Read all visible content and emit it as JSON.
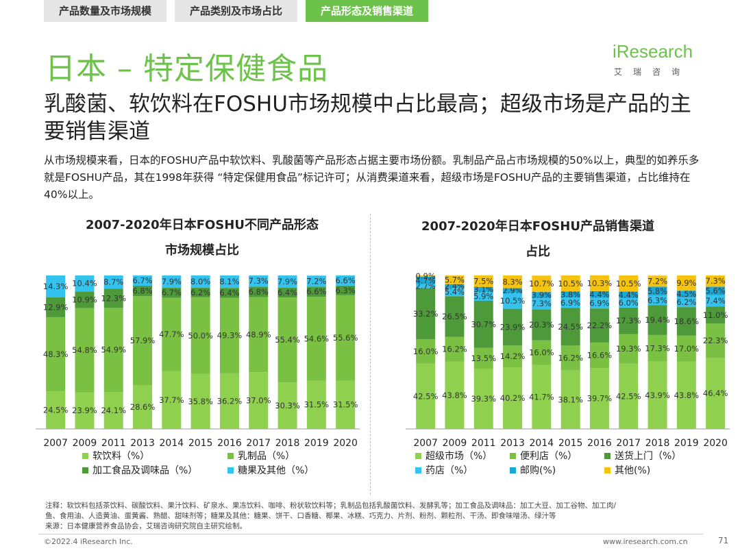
{
  "tabs": [
    {
      "label": "产品数量及市场规模",
      "active": false
    },
    {
      "label": "产品类别及市场占比",
      "active": false
    },
    {
      "label": "产品形态及销售渠道",
      "active": true
    }
  ],
  "page_title": "日本 – 特定保健食品",
  "logo": {
    "text": "iResearch",
    "sub": "艾瑞咨询"
  },
  "headline": "乳酸菌、软饮料在FOSHU市场规模中占比最高；超级市场是产品的主要销售渠道",
  "description": "从市场规模来看，日本的FOSHU产品中软饮料、乳酸菌等产品形态占据主要市场份额。乳制品产品占市场规模的50%以上，典型的如养乐多就是FOSHU产品，其在1998年获得 “特定保健用食品”标记许可；从消费渠道来看，超级市场是FOSHU产品的主要销售渠道，占比维持在40%以上。",
  "colors": {
    "accent": "#6cc24a",
    "light_green": "#8fd14f",
    "mid_green": "#7ac143",
    "dark_green": "#4e9a3a",
    "cyan": "#33c3ee",
    "teal": "#1aa8d6",
    "yellow": "#f6c311"
  },
  "chart_data": [
    {
      "type": "bar",
      "stacked": true,
      "title": "2007-2020年日本FOSHU不同产品形态市场规模占比",
      "title_lines": [
        "2007-2020年日本FOSHU不同产品形态",
        "市场规模占比"
      ],
      "categories": [
        "2007",
        "2009",
        "2011",
        "2013",
        "2014",
        "2015",
        "2016",
        "2017",
        "2018",
        "2019",
        "2020"
      ],
      "ylim": [
        0,
        100
      ],
      "unit": "%",
      "series": [
        {
          "name": "软饮料（%）",
          "color": "#8fd14f",
          "values": [
            24.5,
            23.9,
            24.1,
            28.6,
            37.7,
            35.8,
            36.2,
            37.0,
            30.3,
            31.5,
            31.5
          ]
        },
        {
          "name": "乳制品（%）",
          "color": "#7ac143",
          "values": [
            48.3,
            54.8,
            54.9,
            57.9,
            47.7,
            50.0,
            49.3,
            48.9,
            55.4,
            54.6,
            55.6
          ]
        },
        {
          "name": "加工食品及调味品（%）",
          "color": "#4e9a3a",
          "values": [
            12.9,
            10.9,
            12.3,
            6.8,
            6.7,
            6.2,
            6.4,
            6.8,
            6.4,
            6.6,
            6.3
          ]
        },
        {
          "name": "糖果及其他（%）",
          "color": "#33c3ee",
          "values": [
            14.3,
            10.4,
            8.7,
            6.7,
            7.9,
            8.0,
            8.1,
            7.3,
            7.9,
            7.2,
            6.6
          ]
        }
      ]
    },
    {
      "type": "bar",
      "stacked": true,
      "title": "2007-2020年日本FOSHU产品销售渠道占比",
      "title_lines": [
        "2007-2020年日本FOSHU产品销售渠道",
        "占比"
      ],
      "categories": [
        "2007",
        "2009",
        "2011",
        "2013",
        "2014",
        "2015",
        "2016",
        "2017",
        "2018",
        "2019",
        "2020"
      ],
      "ylim": [
        0,
        100
      ],
      "unit": "%",
      "series": [
        {
          "name": "超级市场（%）",
          "color": "#8fd14f",
          "values": [
            42.5,
            43.8,
            39.3,
            40.2,
            41.7,
            38.1,
            39.7,
            42.5,
            43.9,
            43.8,
            46.4
          ]
        },
        {
          "name": "便利店（%）",
          "color": "#7ac143",
          "values": [
            16.0,
            16.2,
            13.5,
            14.2,
            16.0,
            16.2,
            16.6,
            19.3,
            17.3,
            17.0,
            22.3
          ]
        },
        {
          "name": "送货上门（%）",
          "color": "#4e9a3a",
          "values": [
            33.2,
            26.5,
            30.7,
            23.9,
            20.3,
            24.5,
            22.2,
            17.3,
            19.4,
            18.6,
            11.0
          ]
        },
        {
          "name": "药店（%）",
          "color": "#33c3ee",
          "values": [
            2.7,
            5.4,
            5.9,
            10.5,
            7.3,
            6.9,
            6.9,
            6.0,
            6.3,
            6.2,
            7.4
          ]
        },
        {
          "name": "邮购(%)",
          "color": "#1aa8d6",
          "values": [
            4.7,
            2.4,
            3.1,
            2.9,
            3.9,
            3.8,
            4.4,
            4.4,
            5.8,
            4.5,
            5.6
          ]
        },
        {
          "name": "其他(%)",
          "color": "#f6c311",
          "values": [
            0.9,
            5.7,
            7.5,
            8.3,
            10.7,
            10.5,
            10.3,
            10.5,
            7.2,
            9.9,
            7.3
          ]
        }
      ]
    }
  ],
  "notes": {
    "line1": "注释：软饮料包括茶饮料、碳酸饮料、果汁饮料、矿泉水、果冻饮料、咖啡、粉状软饮料等；乳制品包括乳酸菌饮料、发酵乳等；加工食品及调味品：加工大豆、加工谷物、加工肉/",
    "line2": "鱼、食用油、人造黄油、蛋黄酱、熟醋、甜味剂等；糖果及其他：糖果、饼干、口香糖、椰果、冰糕、巧克力、片剂、粉剂、颗粒剂、干汤、即食味噌汤、绿汁等",
    "line3": "来源：日本健康营养食品协会，艾瑞咨询研究院自主研究绘制。"
  },
  "footer": {
    "copyright": "©2022.4 iResearch Inc.",
    "website": "www.iresearch.com.cn",
    "page": "71"
  }
}
